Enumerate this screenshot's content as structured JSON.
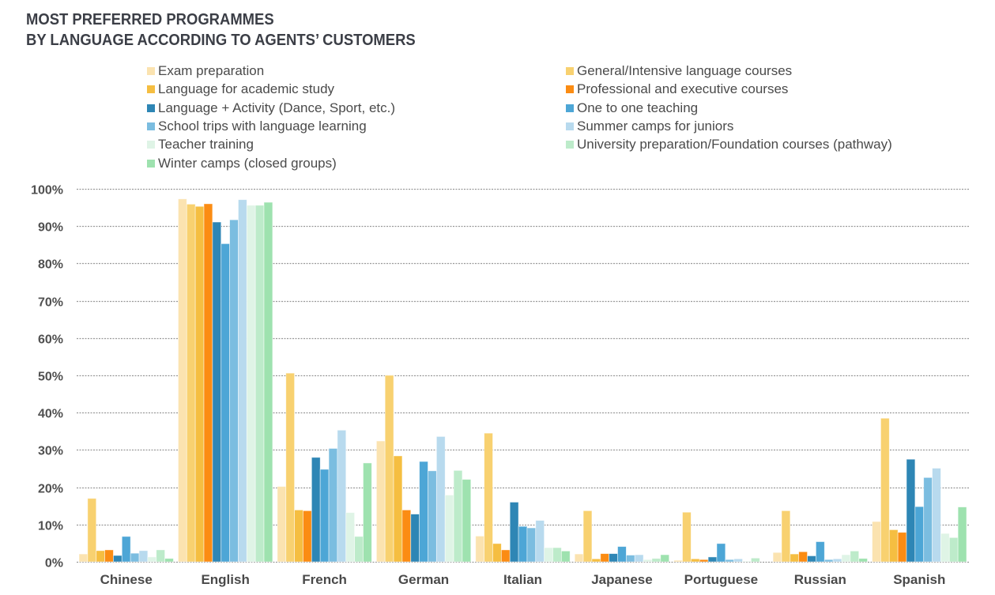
{
  "title_line1": "MOST PREFERRED PROGRAMMES",
  "title_line2": "BY LANGUAGE ACCORDING TO AGENTS’ CUSTOMERS",
  "chart_data": {
    "type": "bar",
    "title": "MOST PREFERRED PROGRAMMES BY LANGUAGE ACCORDING TO AGENTS’ CUSTOMERS",
    "xlabel": "",
    "ylabel": "",
    "ylim": [
      0,
      100
    ],
    "y_ticks": [
      "0%",
      "10%",
      "20%",
      "30%",
      "40%",
      "50%",
      "60%",
      "70%",
      "80%",
      "90%",
      "100%"
    ],
    "grid": true,
    "legend_position": "top",
    "categories": [
      "Chinese",
      "English",
      "French",
      "German",
      "Italian",
      "Japanese",
      "Portuguese",
      "Russian",
      "Spanish"
    ],
    "series": [
      {
        "name": "Exam preparation",
        "color": "#FBE3B0",
        "values": [
          2.1,
          97.3,
          20.2,
          32.4,
          6.9,
          2.1,
          0.4,
          2.5,
          10.8
        ]
      },
      {
        "name": "General/Intensive language courses",
        "color": "#F8D170",
        "values": [
          17.0,
          95.9,
          50.6,
          50.0,
          34.5,
          13.7,
          13.3,
          13.7,
          38.5
        ]
      },
      {
        "name": "Language for academic study",
        "color": "#F5BE41",
        "values": [
          3.0,
          95.3,
          13.9,
          28.4,
          4.9,
          0.8,
          0.8,
          2.1,
          8.6
        ]
      },
      {
        "name": "Professional and executive courses",
        "color": "#FB8C13",
        "values": [
          3.2,
          96.0,
          13.7,
          13.9,
          3.2,
          2.2,
          0.6,
          2.7,
          7.9
        ]
      },
      {
        "name": "Language + Activity (Dance, Sport, etc.)",
        "color": "#2E86B5",
        "values": [
          1.7,
          91.1,
          28.0,
          12.8,
          16.0,
          2.2,
          1.3,
          1.6,
          27.5
        ]
      },
      {
        "name": "One to one teaching",
        "color": "#4DA6D6",
        "values": [
          6.8,
          85.3,
          24.8,
          26.9,
          9.5,
          4.1,
          4.9,
          5.4,
          14.8
        ]
      },
      {
        "name": "School trips with language learning",
        "color": "#7BBDE0",
        "values": [
          2.3,
          91.7,
          30.4,
          24.4,
          9.1,
          1.8,
          0.6,
          0.6,
          22.6
        ]
      },
      {
        "name": "Summer camps for juniors",
        "color": "#B8DAEE",
        "values": [
          3.0,
          97.1,
          35.3,
          33.6,
          11.1,
          1.9,
          0.8,
          0.8,
          25.1
        ]
      },
      {
        "name": "Teacher training",
        "color": "#DFF4E6",
        "values": [
          1.3,
          95.6,
          13.2,
          17.9,
          3.8,
          0.6,
          0.2,
          1.9,
          7.6
        ]
      },
      {
        "name": "University preparation/Foundation courses (pathway)",
        "color": "#BDEBCA",
        "values": [
          3.2,
          95.6,
          6.8,
          24.5,
          3.8,
          0.9,
          1.0,
          2.9,
          6.5
        ]
      },
      {
        "name": "Winter camps (closed groups)",
        "color": "#9EE2AF",
        "values": [
          0.9,
          96.4,
          26.5,
          22.1,
          2.9,
          1.9,
          0.0,
          0.9,
          14.7
        ]
      }
    ]
  }
}
